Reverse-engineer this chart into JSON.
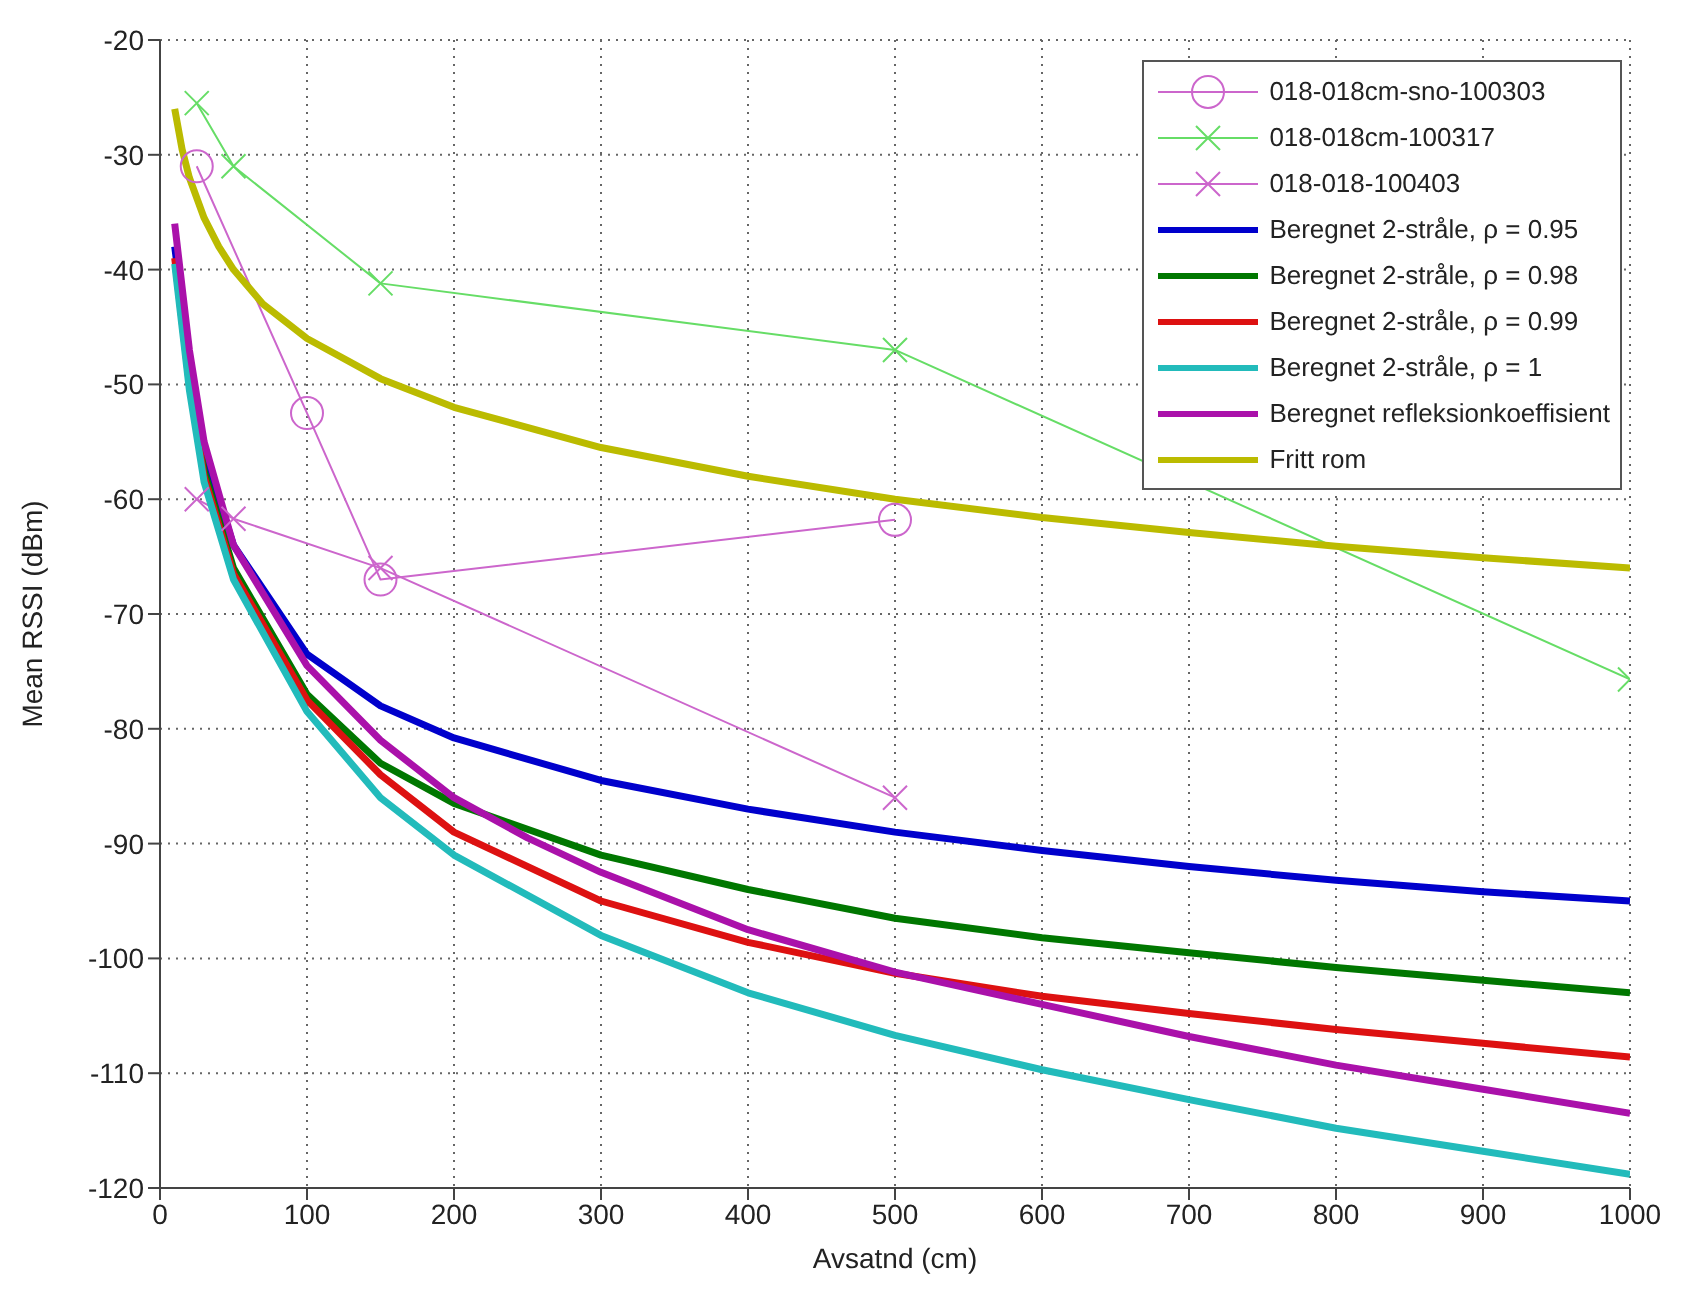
{
  "chart_data": {
    "type": "line",
    "xlabel": "Avsatnd (cm)",
    "ylabel": "Mean RSSI (dBm)",
    "xlim": [
      0,
      1000
    ],
    "ylim": [
      -120,
      -20
    ],
    "xticks": [
      0,
      100,
      200,
      300,
      400,
      500,
      600,
      700,
      800,
      900,
      1000
    ],
    "yticks": [
      -120,
      -110,
      -100,
      -90,
      -80,
      -70,
      -60,
      -50,
      -40,
      -30,
      -20
    ],
    "grid": true,
    "legend": "top right",
    "marker": "none",
    "line_style": "solid",
    "series": [
      {
        "name": "018-018cm-sno-100303",
        "color": "#cc66cc",
        "marker": "circle",
        "x": [
          25,
          100,
          150,
          500
        ],
        "values": [
          -31,
          -52.5,
          -67,
          -61.8
        ]
      },
      {
        "name": "018-018cm-100317",
        "color": "#66dd66",
        "marker": "cross",
        "x": [
          25,
          50,
          150,
          500,
          1000
        ],
        "values": [
          -25.5,
          -31,
          -41.2,
          -47,
          -75.7
        ]
      },
      {
        "name": "018-018-100403",
        "color": "#cc66cc",
        "marker": "cross",
        "x": [
          25,
          50,
          150,
          500
        ],
        "values": [
          -60,
          -61.7,
          -66,
          -86
        ]
      },
      {
        "name": "Beregnet 2-stråle, ρ = 0.95",
        "color": "#0000cc",
        "x": [
          10,
          20,
          30,
          50,
          100,
          150,
          200,
          300,
          400,
          500,
          600,
          700,
          800,
          900,
          1000
        ],
        "values": [
          -38,
          -48,
          -56,
          -64,
          -73.5,
          -78,
          -80.8,
          -84.5,
          -87,
          -89,
          -90.6,
          -92,
          -93.2,
          -94.2,
          -95
        ]
      },
      {
        "name": "Beregnet 2-stråle, ρ = 0.98",
        "color": "#007700",
        "x": [
          20,
          30,
          50,
          100,
          150,
          200,
          300,
          400,
          500,
          600,
          700,
          800,
          900,
          1000
        ],
        "values": [
          -49.5,
          -57.5,
          -66,
          -77,
          -83,
          -86.5,
          -91,
          -94,
          -96.5,
          -98.2,
          -99.5,
          -100.8,
          -101.9,
          -103
        ]
      },
      {
        "name": "Beregnet 2-stråle, ρ = 0.99",
        "color": "#dd1111",
        "x": [
          10,
          20,
          30,
          50,
          100,
          150,
          200,
          300,
          400,
          500,
          600,
          700,
          800,
          900,
          1000
        ],
        "values": [
          -39,
          -50,
          -58,
          -66.5,
          -77.5,
          -84,
          -89,
          -95,
          -98.6,
          -101.3,
          -103.3,
          -104.8,
          -106.2,
          -107.4,
          -108.6
        ]
      },
      {
        "name": "Beregnet 2-stråle, ρ = 1",
        "color": "#22bbbb",
        "x": [
          10,
          20,
          30,
          50,
          100,
          150,
          200,
          300,
          400,
          500,
          600,
          700,
          800,
          900,
          1000
        ],
        "values": [
          -39.5,
          -50.5,
          -58.5,
          -67,
          -78.5,
          -86,
          -91,
          -98,
          -103,
          -106.7,
          -109.7,
          -112.3,
          -114.8,
          -116.8,
          -118.8
        ]
      },
      {
        "name": "Beregnet refleksionkoeffisient",
        "color": "#aa11aa",
        "x": [
          10,
          20,
          30,
          50,
          100,
          150,
          200,
          250,
          300,
          400,
          500,
          600,
          700,
          800,
          900,
          1000
        ],
        "values": [
          -36,
          -47,
          -55,
          -64,
          -74.5,
          -81,
          -86,
          -89.5,
          -92.5,
          -97.5,
          -101.2,
          -104,
          -106.8,
          -109.3,
          -111.4,
          -113.5
        ]
      },
      {
        "name": "Fritt rom",
        "color": "#bbbb00",
        "x": [
          10,
          15,
          20,
          30,
          40,
          50,
          70,
          100,
          150,
          200,
          300,
          400,
          500,
          600,
          700,
          800,
          900,
          1000
        ],
        "values": [
          -26,
          -29.5,
          -32,
          -35.5,
          -38,
          -40,
          -43,
          -46,
          -49.5,
          -52,
          -55.5,
          -58,
          -60,
          -61.6,
          -62.9,
          -64.1,
          -65.1,
          -66
        ]
      }
    ]
  }
}
